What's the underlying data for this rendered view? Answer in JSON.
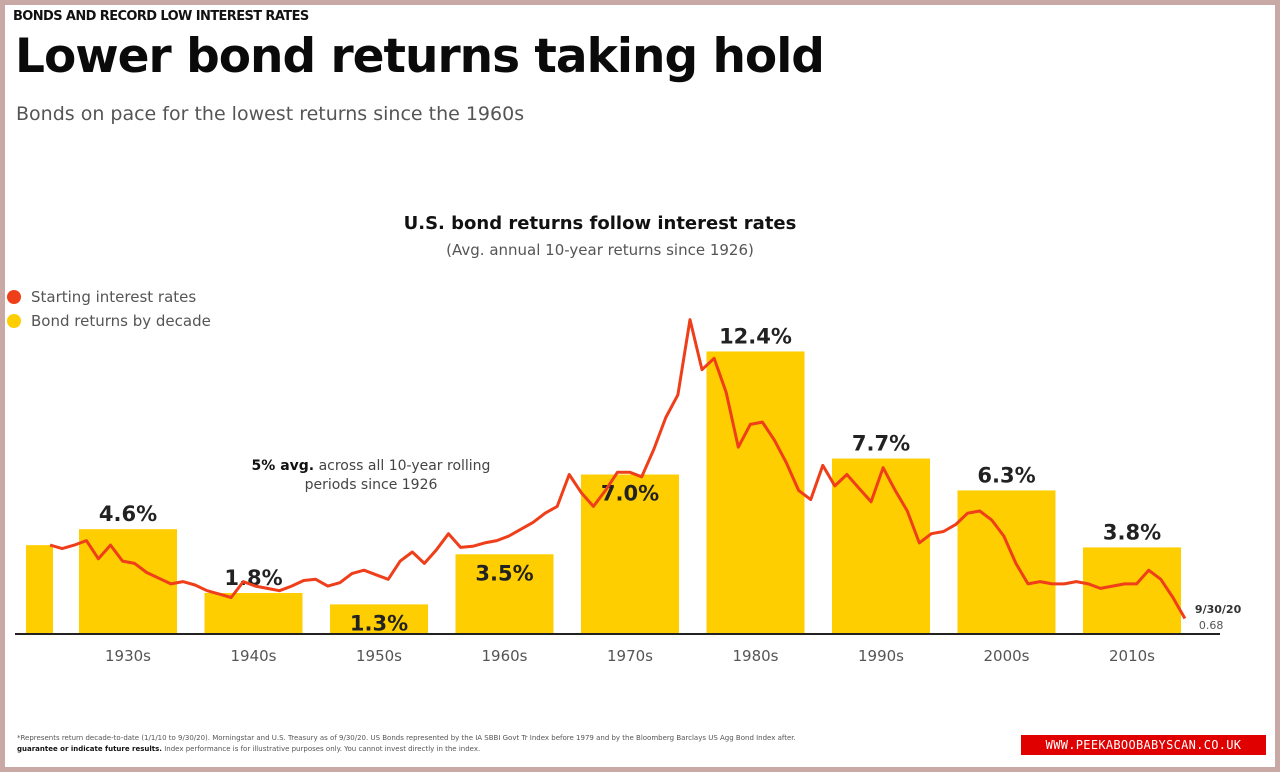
{
  "kicker": "BONDS AND RECORD LOW INTEREST RATES",
  "title": "Lower bond returns taking hold",
  "subtitle": "Bonds on pace for the lowest returns since the 1960s",
  "colors": {
    "rate_line": "#ef3e1a",
    "bars": "#ffce00",
    "axis": "#222222"
  },
  "chart_data": {
    "type": "bar",
    "title": "U.S. bond returns follow interest rates",
    "subtitle": "(Avg. annual 10-year returns since 1926)",
    "legend": [
      {
        "label": "Starting interest rates",
        "color": "#ef3e1a"
      },
      {
        "label": "Bond returns by decade",
        "color": "#ffce00"
      }
    ],
    "legend_position": "top-left",
    "categories": [
      "1930s",
      "1940s",
      "1950s",
      "1960s",
      "1970s",
      "1980s",
      "1990s",
      "2000s",
      "2010s"
    ],
    "series": [
      {
        "name": "Bond returns by decade",
        "values": [
          4.6,
          1.8,
          1.3,
          3.5,
          7.0,
          12.4,
          7.7,
          6.3,
          3.8
        ],
        "labels": [
          "4.6%",
          "1.8%",
          "1.3%",
          "3.5%",
          "7.0%",
          "12.4%",
          "7.7%",
          "6.3%",
          "3.8%"
        ]
      },
      {
        "name": "Starting interest rates",
        "type": "line",
        "x": [
          1926,
          1927,
          1928,
          1929,
          1930,
          1931,
          1932,
          1933,
          1934,
          1935,
          1936,
          1937,
          1938,
          1939,
          1940,
          1941,
          1942,
          1943,
          1944,
          1945,
          1946,
          1947,
          1948,
          1949,
          1950,
          1951,
          1952,
          1953,
          1954,
          1955,
          1956,
          1957,
          1958,
          1959,
          1960,
          1961,
          1962,
          1963,
          1964,
          1965,
          1966,
          1967,
          1968,
          1969,
          1970,
          1971,
          1972,
          1973,
          1974,
          1975,
          1976,
          1977,
          1978,
          1979,
          1980,
          1981,
          1982,
          1983,
          1984,
          1985,
          1986,
          1987,
          1988,
          1989,
          1990,
          1991,
          1992,
          1993,
          1994,
          1995,
          1996,
          1997,
          1998,
          1999,
          2000,
          2001,
          2002,
          2003,
          2004,
          2005,
          2006,
          2007,
          2008,
          2009,
          2010,
          2011,
          2012,
          2013,
          2014,
          2015,
          2016,
          2017,
          2018,
          2019,
          2020
        ],
        "values": [
          3.9,
          3.75,
          3.9,
          4.1,
          3.3,
          3.9,
          3.2,
          3.1,
          2.7,
          2.45,
          2.2,
          2.3,
          2.15,
          1.9,
          1.75,
          1.6,
          2.3,
          2.1,
          2.0,
          1.9,
          2.1,
          2.35,
          2.4,
          2.1,
          2.25,
          2.65,
          2.8,
          2.6,
          2.4,
          3.2,
          3.6,
          3.1,
          3.7,
          4.4,
          3.8,
          3.85,
          4.0,
          4.1,
          4.3,
          4.6,
          4.9,
          5.3,
          5.6,
          7.0,
          6.2,
          5.6,
          6.3,
          7.1,
          7.1,
          6.9,
          8.1,
          9.5,
          10.5,
          13.8,
          11.6,
          12.1,
          10.6,
          8.2,
          9.2,
          9.3,
          8.5,
          7.5,
          6.3,
          5.9,
          7.4,
          6.5,
          7.0,
          6.4,
          5.8,
          7.3,
          6.3,
          5.4,
          4.0,
          4.4,
          4.5,
          4.8,
          5.3,
          5.4,
          5.0,
          4.3,
          3.1,
          2.2,
          2.3,
          2.2,
          2.2,
          2.3,
          2.2,
          2.0,
          2.1,
          2.2,
          2.2,
          2.8,
          2.4,
          1.6,
          0.68
        ]
      }
    ],
    "annotation": {
      "bold": "5% avg.",
      "text": "across all 10-year rolling periods since 1926"
    },
    "end_label": {
      "date": "9/30/20",
      "value": "0.68"
    },
    "ylim": [
      0,
      14
    ],
    "xlabel": "",
    "ylabel": ""
  },
  "footnote": {
    "line1": "*Represents return decade-to-date (1/1/10 to 9/30/20). Morningstar and U.S. Treasury as of 9/30/20. US Bonds represented by the IA SBBI Govt Tr Index before 1979 and by the Bloomberg Barclays US Agg Bond Index after.",
    "line2_bold": "guarantee or indicate future results.",
    "line2": "Index performance is for illustrative purposes only. You cannot invest directly in the index."
  },
  "watermark": "WWW.PEEKABOOBABYSCAN.CO.UK"
}
